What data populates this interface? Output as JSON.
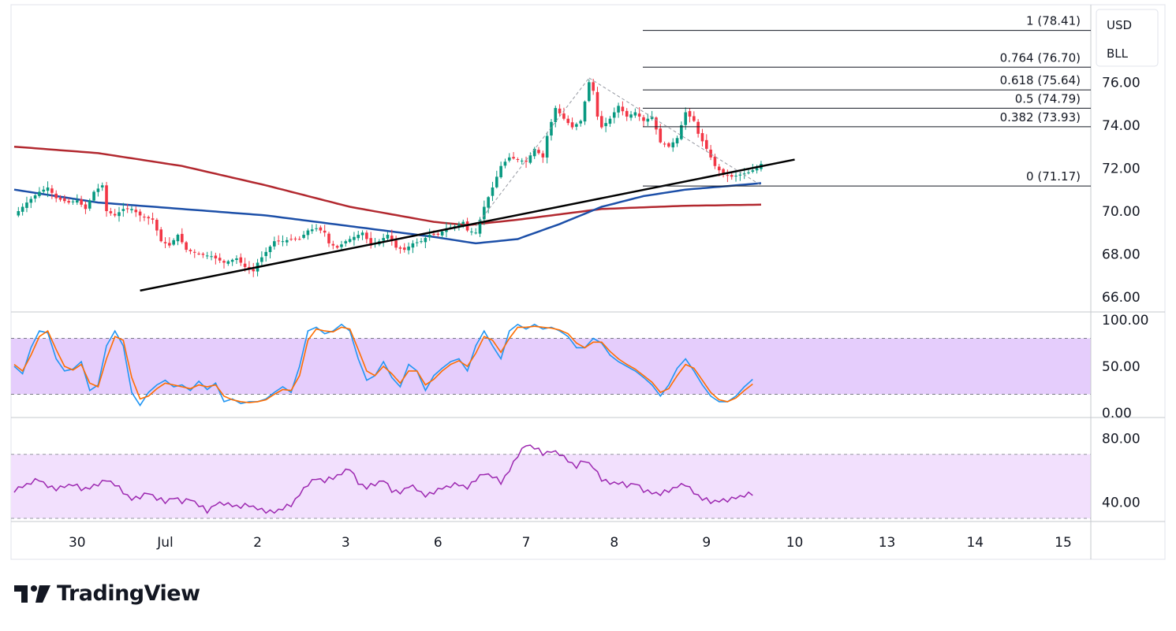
{
  "chart_data": {
    "type": "candlestick",
    "currency": "USD",
    "unit": "BLL",
    "x_ticks": [
      "30",
      "Jul",
      "2",
      "3",
      "6",
      "7",
      "8",
      "9",
      "10",
      "13",
      "14",
      "15"
    ],
    "price_axis": {
      "ticks": [
        "76.00",
        "74.00",
        "72.00",
        "70.00",
        "68.00",
        "66.00"
      ],
      "ylim": [
        65.6,
        78.8
      ]
    },
    "stoch_axis": {
      "ticks": [
        "100.00",
        "50.00",
        "0.00"
      ],
      "ylim": [
        -5,
        105
      ],
      "band": [
        20,
        80
      ]
    },
    "rsi_axis": {
      "ticks": [
        "80.00",
        "40.00"
      ],
      "ylim": [
        28,
        92
      ],
      "band": [
        30,
        70
      ]
    },
    "fibonacci": [
      {
        "label": "1 (78.41)",
        "price": 78.41
      },
      {
        "label": "0.764 (76.70)",
        "price": 76.7
      },
      {
        "label": "0.618 (75.64)",
        "price": 75.64
      },
      {
        "label": "0.5 (74.79)",
        "price": 74.79
      },
      {
        "label": "0.382 (73.93)",
        "price": 73.93
      },
      {
        "label": "0 (71.17)",
        "price": 71.17
      }
    ],
    "close_path": [
      [
        0,
        69.8
      ],
      [
        3,
        70.4
      ],
      [
        6,
        70.9
      ],
      [
        8,
        71.1
      ],
      [
        10,
        70.6
      ],
      [
        13,
        70.4
      ],
      [
        15,
        70.5
      ],
      [
        17,
        70.1
      ],
      [
        19,
        70.9
      ],
      [
        21,
        71.2
      ],
      [
        22,
        70.0
      ],
      [
        24,
        69.8
      ],
      [
        26,
        70.1
      ],
      [
        28,
        70.1
      ],
      [
        30,
        69.8
      ],
      [
        33,
        69.6
      ],
      [
        35,
        68.6
      ],
      [
        37,
        68.4
      ],
      [
        39,
        68.9
      ],
      [
        41,
        68.2
      ],
      [
        44,
        68.0
      ],
      [
        47,
        67.9
      ],
      [
        50,
        67.6
      ],
      [
        53,
        67.8
      ],
      [
        55,
        67.4
      ],
      [
        57,
        67.2
      ],
      [
        58,
        67.6
      ],
      [
        60,
        68.1
      ],
      [
        62,
        68.6
      ],
      [
        64,
        68.6
      ],
      [
        66,
        68.7
      ],
      [
        68,
        68.7
      ],
      [
        70,
        69.1
      ],
      [
        72,
        69.2
      ],
      [
        74,
        69.0
      ],
      [
        75,
        68.5
      ],
      [
        77,
        68.3
      ],
      [
        79,
        68.6
      ],
      [
        81,
        68.8
      ],
      [
        83,
        69.0
      ],
      [
        85,
        68.4
      ],
      [
        87,
        68.6
      ],
      [
        89,
        68.9
      ],
      [
        91,
        68.3
      ],
      [
        93,
        68.2
      ],
      [
        95,
        68.5
      ],
      [
        97,
        68.6
      ],
      [
        99,
        68.9
      ],
      [
        101,
        68.9
      ],
      [
        103,
        69.2
      ],
      [
        105,
        69.3
      ],
      [
        107,
        69.5
      ],
      [
        108,
        69.1
      ],
      [
        110,
        69.0
      ],
      [
        112,
        70.2
      ],
      [
        114,
        71.1
      ],
      [
        116,
        72.1
      ],
      [
        118,
        72.5
      ],
      [
        120,
        72.4
      ],
      [
        122,
        72.3
      ],
      [
        124,
        72.9
      ],
      [
        126,
        72.5
      ],
      [
        127,
        73.5
      ],
      [
        129,
        74.8
      ],
      [
        131,
        74.3
      ],
      [
        133,
        73.9
      ],
      [
        135,
        74.2
      ],
      [
        137,
        76.0
      ],
      [
        138,
        75.6
      ],
      [
        139,
        74.4
      ],
      [
        140,
        73.9
      ],
      [
        142,
        74.3
      ],
      [
        144,
        74.9
      ],
      [
        146,
        74.4
      ],
      [
        148,
        74.6
      ],
      [
        150,
        74.2
      ],
      [
        152,
        74.4
      ],
      [
        154,
        73.2
      ],
      [
        156,
        73.0
      ],
      [
        158,
        73.4
      ],
      [
        160,
        74.6
      ],
      [
        162,
        74.2
      ],
      [
        163,
        73.6
      ],
      [
        165,
        72.9
      ],
      [
        167,
        72.1
      ],
      [
        169,
        71.7
      ],
      [
        171,
        71.6
      ],
      [
        173,
        71.7
      ],
      [
        175,
        71.8
      ],
      [
        177,
        72.0
      ],
      [
        178,
        72.2
      ]
    ],
    "stoch_k": [
      [
        0,
        50
      ],
      [
        2,
        42
      ],
      [
        4,
        70
      ],
      [
        6,
        88
      ],
      [
        8,
        86
      ],
      [
        10,
        58
      ],
      [
        12,
        45
      ],
      [
        14,
        47
      ],
      [
        16,
        55
      ],
      [
        18,
        24
      ],
      [
        20,
        30
      ],
      [
        22,
        72
      ],
      [
        24,
        88
      ],
      [
        26,
        72
      ],
      [
        28,
        22
      ],
      [
        30,
        8
      ],
      [
        32,
        22
      ],
      [
        34,
        30
      ],
      [
        36,
        35
      ],
      [
        38,
        28
      ],
      [
        40,
        30
      ],
      [
        42,
        24
      ],
      [
        44,
        34
      ],
      [
        46,
        25
      ],
      [
        48,
        32
      ],
      [
        50,
        12
      ],
      [
        52,
        15
      ],
      [
        54,
        10
      ],
      [
        56,
        12
      ],
      [
        58,
        12
      ],
      [
        60,
        15
      ],
      [
        62,
        22
      ],
      [
        64,
        28
      ],
      [
        66,
        22
      ],
      [
        68,
        50
      ],
      [
        70,
        88
      ],
      [
        72,
        92
      ],
      [
        74,
        85
      ],
      [
        76,
        88
      ],
      [
        78,
        95
      ],
      [
        80,
        88
      ],
      [
        82,
        58
      ],
      [
        84,
        35
      ],
      [
        86,
        40
      ],
      [
        88,
        55
      ],
      [
        90,
        38
      ],
      [
        92,
        28
      ],
      [
        94,
        52
      ],
      [
        96,
        45
      ],
      [
        98,
        24
      ],
      [
        100,
        40
      ],
      [
        102,
        48
      ],
      [
        104,
        55
      ],
      [
        106,
        58
      ],
      [
        108,
        45
      ],
      [
        110,
        72
      ],
      [
        112,
        88
      ],
      [
        114,
        72
      ],
      [
        116,
        58
      ],
      [
        118,
        88
      ],
      [
        120,
        95
      ],
      [
        122,
        90
      ],
      [
        124,
        95
      ],
      [
        126,
        90
      ],
      [
        128,
        92
      ],
      [
        130,
        88
      ],
      [
        132,
        82
      ],
      [
        134,
        70
      ],
      [
        136,
        70
      ],
      [
        138,
        80
      ],
      [
        140,
        75
      ],
      [
        142,
        62
      ],
      [
        144,
        55
      ],
      [
        146,
        50
      ],
      [
        148,
        45
      ],
      [
        150,
        38
      ],
      [
        152,
        30
      ],
      [
        154,
        18
      ],
      [
        156,
        30
      ],
      [
        158,
        48
      ],
      [
        160,
        58
      ],
      [
        162,
        45
      ],
      [
        164,
        30
      ],
      [
        166,
        18
      ],
      [
        168,
        12
      ],
      [
        170,
        12
      ],
      [
        172,
        18
      ],
      [
        174,
        28
      ],
      [
        176,
        36
      ]
    ],
    "stoch_d": [
      [
        0,
        52
      ],
      [
        2,
        45
      ],
      [
        4,
        62
      ],
      [
        6,
        82
      ],
      [
        8,
        88
      ],
      [
        10,
        68
      ],
      [
        12,
        50
      ],
      [
        14,
        46
      ],
      [
        16,
        52
      ],
      [
        18,
        32
      ],
      [
        20,
        28
      ],
      [
        22,
        58
      ],
      [
        24,
        82
      ],
      [
        26,
        78
      ],
      [
        28,
        38
      ],
      [
        30,
        15
      ],
      [
        32,
        18
      ],
      [
        34,
        26
      ],
      [
        36,
        32
      ],
      [
        38,
        30
      ],
      [
        40,
        28
      ],
      [
        42,
        26
      ],
      [
        44,
        30
      ],
      [
        46,
        28
      ],
      [
        48,
        30
      ],
      [
        50,
        18
      ],
      [
        52,
        14
      ],
      [
        54,
        12
      ],
      [
        56,
        11
      ],
      [
        58,
        12
      ],
      [
        60,
        14
      ],
      [
        62,
        20
      ],
      [
        64,
        25
      ],
      [
        66,
        24
      ],
      [
        68,
        40
      ],
      [
        70,
        78
      ],
      [
        72,
        90
      ],
      [
        74,
        88
      ],
      [
        76,
        87
      ],
      [
        78,
        92
      ],
      [
        80,
        90
      ],
      [
        82,
        68
      ],
      [
        84,
        45
      ],
      [
        86,
        40
      ],
      [
        88,
        50
      ],
      [
        90,
        42
      ],
      [
        92,
        32
      ],
      [
        94,
        45
      ],
      [
        96,
        45
      ],
      [
        98,
        30
      ],
      [
        100,
        36
      ],
      [
        102,
        45
      ],
      [
        104,
        52
      ],
      [
        106,
        56
      ],
      [
        108,
        50
      ],
      [
        110,
        64
      ],
      [
        112,
        82
      ],
      [
        114,
        78
      ],
      [
        116,
        65
      ],
      [
        118,
        80
      ],
      [
        120,
        92
      ],
      [
        122,
        92
      ],
      [
        124,
        93
      ],
      [
        126,
        92
      ],
      [
        128,
        91
      ],
      [
        130,
        89
      ],
      [
        132,
        85
      ],
      [
        134,
        75
      ],
      [
        136,
        70
      ],
      [
        138,
        76
      ],
      [
        140,
        76
      ],
      [
        142,
        66
      ],
      [
        144,
        58
      ],
      [
        146,
        52
      ],
      [
        148,
        47
      ],
      [
        150,
        40
      ],
      [
        152,
        33
      ],
      [
        154,
        22
      ],
      [
        156,
        26
      ],
      [
        158,
        40
      ],
      [
        160,
        52
      ],
      [
        162,
        48
      ],
      [
        164,
        35
      ],
      [
        166,
        22
      ],
      [
        168,
        14
      ],
      [
        170,
        12
      ],
      [
        172,
        16
      ],
      [
        174,
        24
      ],
      [
        176,
        31
      ]
    ],
    "rsi": [
      [
        0,
        48
      ],
      [
        2,
        50
      ],
      [
        4,
        52
      ],
      [
        6,
        54
      ],
      [
        8,
        50
      ],
      [
        10,
        49
      ],
      [
        12,
        50
      ],
      [
        14,
        51
      ],
      [
        16,
        48
      ],
      [
        18,
        49
      ],
      [
        20,
        52
      ],
      [
        22,
        54
      ],
      [
        24,
        51
      ],
      [
        26,
        46
      ],
      [
        28,
        42
      ],
      [
        30,
        44
      ],
      [
        32,
        46
      ],
      [
        34,
        42
      ],
      [
        36,
        40
      ],
      [
        38,
        43
      ],
      [
        40,
        41
      ],
      [
        42,
        42
      ],
      [
        44,
        38
      ],
      [
        46,
        34
      ],
      [
        48,
        39
      ],
      [
        50,
        40
      ],
      [
        52,
        38
      ],
      [
        54,
        37
      ],
      [
        56,
        38
      ],
      [
        58,
        36
      ],
      [
        60,
        35
      ],
      [
        62,
        34
      ],
      [
        64,
        36
      ],
      [
        66,
        38
      ],
      [
        68,
        45
      ],
      [
        70,
        52
      ],
      [
        72,
        55
      ],
      [
        74,
        53
      ],
      [
        76,
        55
      ],
      [
        78,
        58
      ],
      [
        80,
        62
      ],
      [
        82,
        52
      ],
      [
        84,
        49
      ],
      [
        86,
        51
      ],
      [
        88,
        54
      ],
      [
        90,
        48
      ],
      [
        92,
        46
      ],
      [
        94,
        50
      ],
      [
        96,
        48
      ],
      [
        98,
        44
      ],
      [
        100,
        47
      ],
      [
        102,
        49
      ],
      [
        104,
        50
      ],
      [
        106,
        51
      ],
      [
        108,
        49
      ],
      [
        110,
        55
      ],
      [
        112,
        58
      ],
      [
        114,
        56
      ],
      [
        116,
        52
      ],
      [
        118,
        60
      ],
      [
        120,
        70
      ],
      [
        122,
        76
      ],
      [
        124,
        74
      ],
      [
        126,
        70
      ],
      [
        128,
        72
      ],
      [
        130,
        71
      ],
      [
        132,
        66
      ],
      [
        134,
        62
      ],
      [
        136,
        66
      ],
      [
        138,
        62
      ],
      [
        140,
        55
      ],
      [
        142,
        52
      ],
      [
        144,
        52
      ],
      [
        146,
        50
      ],
      [
        148,
        52
      ],
      [
        150,
        48
      ],
      [
        152,
        46
      ],
      [
        154,
        45
      ],
      [
        156,
        47
      ],
      [
        158,
        50
      ],
      [
        160,
        52
      ],
      [
        162,
        46
      ],
      [
        164,
        42
      ],
      [
        166,
        40
      ],
      [
        168,
        41
      ],
      [
        170,
        42
      ],
      [
        172,
        43
      ],
      [
        174,
        44
      ],
      [
        176,
        45
      ]
    ],
    "ma_red": [
      [
        0,
        73.0
      ],
      [
        20,
        72.7
      ],
      [
        40,
        72.1
      ],
      [
        60,
        71.2
      ],
      [
        80,
        70.2
      ],
      [
        100,
        69.5
      ],
      [
        108,
        69.35
      ],
      [
        120,
        69.6
      ],
      [
        140,
        70.1
      ],
      [
        160,
        70.25
      ],
      [
        178,
        70.3
      ]
    ],
    "ma_blue": [
      [
        0,
        71.0
      ],
      [
        20,
        70.4
      ],
      [
        40,
        70.1
      ],
      [
        60,
        69.8
      ],
      [
        80,
        69.3
      ],
      [
        100,
        68.8
      ],
      [
        110,
        68.5
      ],
      [
        120,
        68.7
      ],
      [
        130,
        69.4
      ],
      [
        140,
        70.2
      ],
      [
        150,
        70.7
      ],
      [
        160,
        71.0
      ],
      [
        178,
        71.3
      ]
    ],
    "trendline": [
      [
        30,
        66.3
      ],
      [
        186,
        72.4
      ]
    ],
    "colors": {
      "up": "#089981",
      "down": "#f23645",
      "ma_red": "#b2282f",
      "ma_blue": "#1c4fa8",
      "stoch_k": "#2196f3",
      "stoch_d": "#ff6d00",
      "rsi": "#9c27b0",
      "band": "#e1c4fb",
      "rsi_band": "#f2e0fd"
    }
  },
  "brand": {
    "name": "TradingView"
  }
}
